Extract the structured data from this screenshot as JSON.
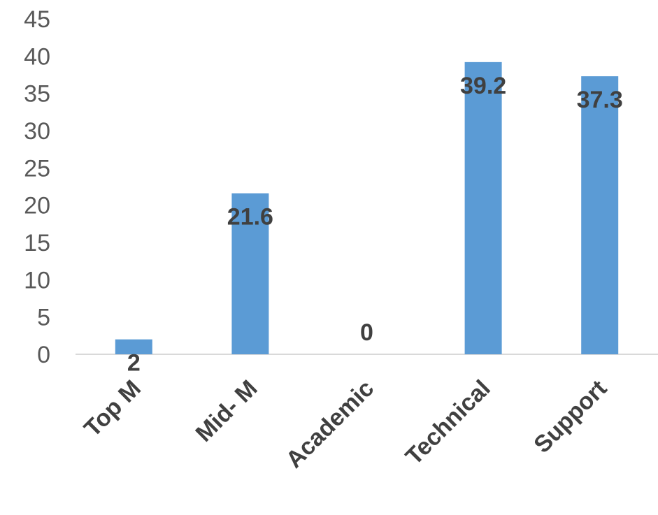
{
  "chart_data": {
    "type": "bar",
    "categories": [
      "Top M",
      "Mid- M",
      "Academic",
      "Technical",
      "Support"
    ],
    "values": [
      2,
      21.6,
      0,
      39.2,
      37.3
    ],
    "data_labels": [
      "2",
      "21.6",
      "0",
      "39.2",
      "37.3"
    ],
    "y_ticks": [
      "0",
      "5",
      "10",
      "15",
      "20",
      "25",
      "30",
      "35",
      "40",
      "45"
    ],
    "ylim": [
      0,
      45
    ],
    "grid": false,
    "legend": "none",
    "bar_color": "#5B9BD5",
    "axis_color": "#D9D9D9"
  }
}
